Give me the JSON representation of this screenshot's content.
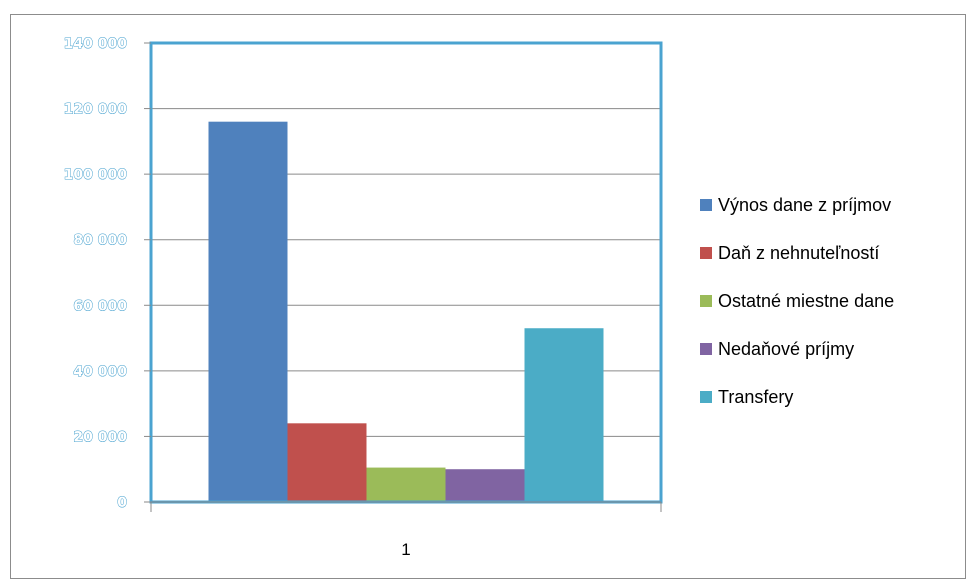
{
  "chart_data": {
    "type": "bar",
    "categories": [
      "1"
    ],
    "series": [
      {
        "name": "Výnos dane z príjmov",
        "values": [
          116000
        ],
        "color": "#4f81bd"
      },
      {
        "name": "Daň z nehnuteľností",
        "values": [
          24000
        ],
        "color": "#c0504d"
      },
      {
        "name": "Ostatné miestne dane",
        "values": [
          10500
        ],
        "color": "#9bbb59"
      },
      {
        "name": "Nedaňové príjmy",
        "values": [
          10000
        ],
        "color": "#8064a2"
      },
      {
        "name": "Transfery",
        "values": [
          53000
        ],
        "color": "#4bacc6"
      }
    ],
    "ylim": [
      0,
      140000
    ],
    "yticks": [
      0,
      20000,
      40000,
      60000,
      80000,
      100000,
      120000,
      140000
    ],
    "ytick_labels": [
      "0",
      "20 000",
      "40 000",
      "60 000",
      "80 000",
      "100 000",
      "120 000",
      "140 000"
    ],
    "grid": true,
    "legend_position": "right",
    "plot_border_color": "#4aa3d0",
    "title": "",
    "xlabel": "",
    "ylabel": ""
  }
}
